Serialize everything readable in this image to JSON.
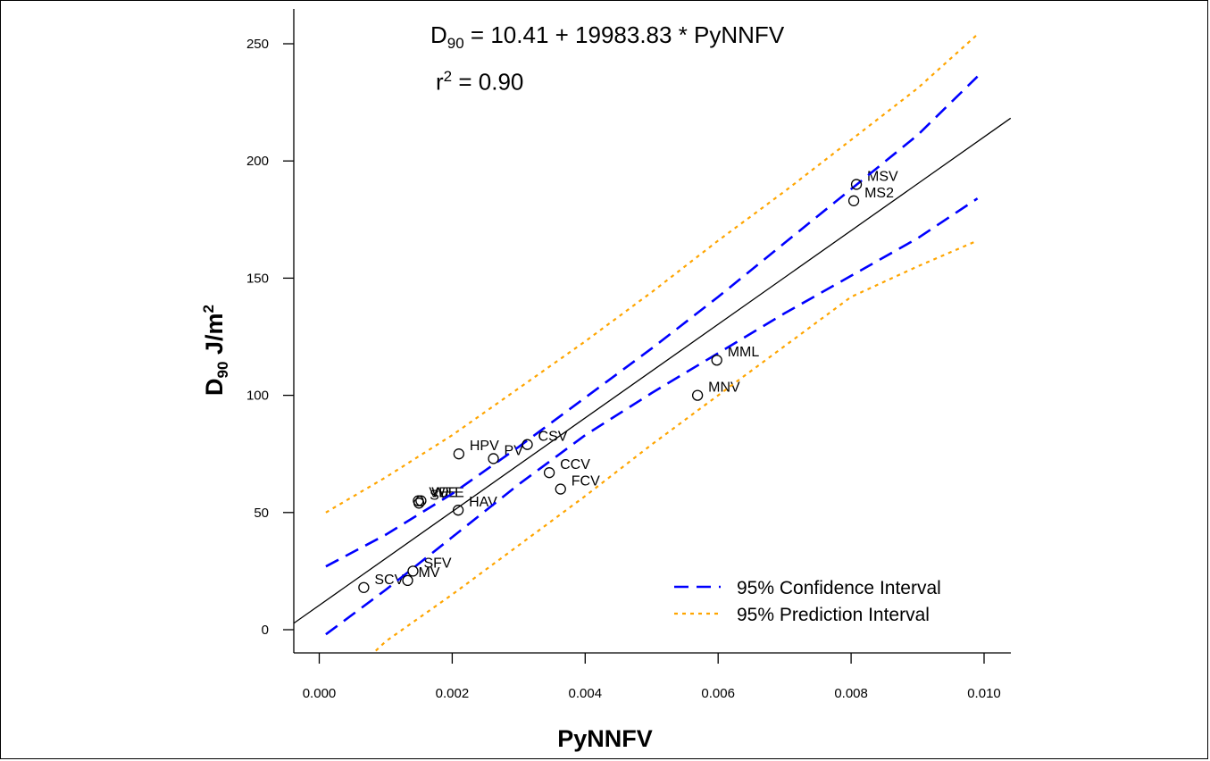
{
  "chart_data": {
    "type": "scatter",
    "xlabel": "PyNNFV",
    "ylabel": {
      "main": "D",
      "sub": "90",
      "unit": " J/m",
      "sup": "2"
    },
    "equation": {
      "lhs": "D",
      "lhs_sub": "90",
      "rhs": " = 10.41 + 19983.83 * PyNNFV"
    },
    "r2": {
      "base": "r",
      "sup": "2",
      "rest": " = 0.90"
    },
    "xlim": [
      -0.0004,
      0.0104
    ],
    "ylim": [
      -10,
      260
    ],
    "x_ticks": [
      0.0,
      0.002,
      0.004,
      0.006,
      0.008,
      0.01
    ],
    "x_tick_labels": [
      "0.000",
      "0.002",
      "0.004",
      "0.006",
      "0.008",
      "0.010"
    ],
    "y_ticks": [
      0,
      50,
      100,
      150,
      200,
      250
    ],
    "y_tick_labels": [
      "0",
      "50",
      "100",
      "150",
      "200",
      "250"
    ],
    "regression": {
      "intercept": 10.41,
      "slope": 19983.83
    },
    "points": [
      {
        "label": "MSV",
        "x": 0.00808,
        "y": 190
      },
      {
        "label": "MS2",
        "x": 0.00804,
        "y": 183
      },
      {
        "label": "MML",
        "x": 0.00598,
        "y": 115
      },
      {
        "label": "MNV",
        "x": 0.00569,
        "y": 100
      },
      {
        "label": "CSV",
        "x": 0.00313,
        "y": 79
      },
      {
        "label": "PV",
        "x": 0.00262,
        "y": 73
      },
      {
        "label": "HPV",
        "x": 0.0021,
        "y": 75
      },
      {
        "label": "CCV",
        "x": 0.00346,
        "y": 67
      },
      {
        "label": "FCV",
        "x": 0.00363,
        "y": 60
      },
      {
        "label": "VEE",
        "x": 0.00149,
        "y": 55
      },
      {
        "label": "WEE",
        "x": 0.00153,
        "y": 55
      },
      {
        "label": "SV",
        "x": 0.0015,
        "y": 54
      },
      {
        "label": "HAV",
        "x": 0.00209,
        "y": 51
      },
      {
        "label": "SFV",
        "x": 0.00141,
        "y": 25
      },
      {
        "label": "MV",
        "x": 0.00133,
        "y": 21
      },
      {
        "label": "SCV",
        "x": 0.00067,
        "y": 18
      }
    ],
    "confidence_upper": [
      [
        0.0001,
        27
      ],
      [
        0.001,
        40.5
      ],
      [
        0.002,
        58
      ],
      [
        0.003,
        78
      ],
      [
        0.004,
        99
      ],
      [
        0.005,
        120
      ],
      [
        0.006,
        142
      ],
      [
        0.007,
        165
      ],
      [
        0.008,
        188
      ],
      [
        0.009,
        211
      ],
      [
        0.0099,
        236
      ]
    ],
    "confidence_lower": [
      [
        0.0001,
        -2
      ],
      [
        0.001,
        17
      ],
      [
        0.002,
        39.5
      ],
      [
        0.003,
        62
      ],
      [
        0.004,
        83
      ],
      [
        0.005,
        101
      ],
      [
        0.006,
        118
      ],
      [
        0.007,
        135
      ],
      [
        0.008,
        151
      ],
      [
        0.009,
        167
      ],
      [
        0.0099,
        184
      ]
    ],
    "prediction_upper": [
      [
        0.0001,
        50
      ],
      [
        0.001,
        65
      ],
      [
        0.002,
        83
      ],
      [
        0.003,
        103
      ],
      [
        0.004,
        123
      ],
      [
        0.005,
        144
      ],
      [
        0.006,
        166
      ],
      [
        0.007,
        187
      ],
      [
        0.008,
        209
      ],
      [
        0.009,
        231
      ],
      [
        0.0099,
        254
      ]
    ],
    "prediction_lower": [
      [
        0.00085,
        -9
      ],
      [
        0.001,
        -5
      ],
      [
        0.002,
        15
      ],
      [
        0.003,
        36
      ],
      [
        0.004,
        57
      ],
      [
        0.005,
        79
      ],
      [
        0.006,
        100
      ],
      [
        0.007,
        121
      ],
      [
        0.008,
        142
      ],
      [
        0.009,
        155
      ],
      [
        0.0099,
        166
      ]
    ],
    "legend": {
      "position": "bottom-right",
      "items": [
        {
          "label": "95% Confidence Interval",
          "color": "#0000ff",
          "style": "dashed"
        },
        {
          "label": "95% Prediction Interval",
          "color": "#ffa500",
          "style": "dotted"
        }
      ]
    },
    "colors": {
      "regression": "#000000",
      "confidence": "#0000ff",
      "prediction": "#ffa500",
      "points": "#000000"
    }
  }
}
